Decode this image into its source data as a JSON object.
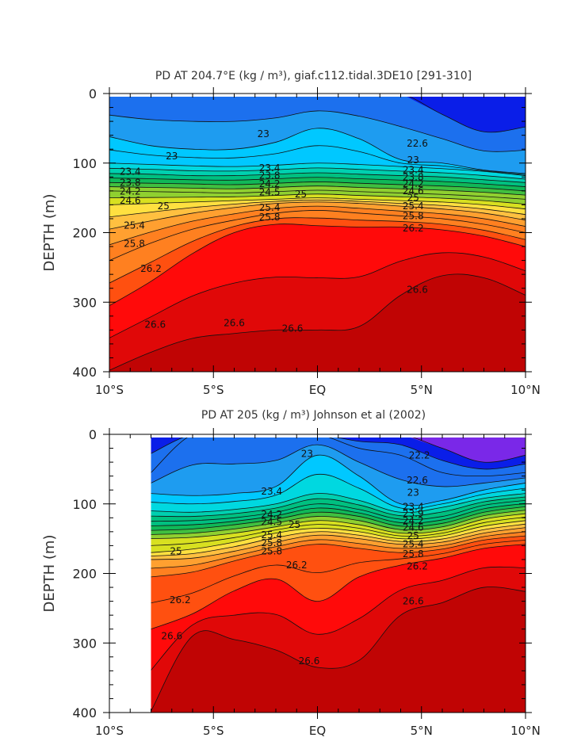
{
  "chart_data": [
    {
      "type": "contour",
      "title": "PD AT 204.7°E (kg / m³), giaf.c112.tidal.3DE10 [291-310]",
      "ylabel": "DEPTH (m)",
      "xlabel": "",
      "x_tick_labels": [
        "10°S",
        "5°S",
        "EQ",
        "5°N",
        "10°N"
      ],
      "x_ticks": [
        -10,
        -5,
        0,
        5,
        10
      ],
      "y_ticks": [
        0,
        100,
        200,
        300,
        400
      ],
      "xlim": [
        -10,
        10
      ],
      "ylim": [
        400,
        0
      ],
      "data_xlim": [
        -10,
        10
      ],
      "units": "kg / m³",
      "fill_colors": [
        "#0a1ee8",
        "#1c70ee",
        "#1e9cf0",
        "#00c8ff",
        "#00d8e0",
        "#00d0b0",
        "#00c080",
        "#10b858",
        "#40c040",
        "#90d030",
        "#d8e020",
        "#ffe040",
        "#ffc040",
        "#ffa030",
        "#ff8020",
        "#ff5010",
        "#ff0a0a",
        "#e00808",
        "#c00404"
      ],
      "contour_levels": [
        22.6,
        22.8,
        23.0,
        23.2,
        23.4,
        23.6,
        23.8,
        24.0,
        24.2,
        24.4,
        24.6,
        24.8,
        25.0,
        25.2,
        25.4,
        25.6,
        25.8,
        26.0,
        26.2,
        26.4,
        26.6,
        26.8
      ],
      "isopycnal_depths": {
        "lat": [
          -10,
          -8,
          -6,
          -4,
          -2,
          0,
          2,
          4,
          6,
          8,
          10
        ],
        "series": [
          {
            "name": "22.6",
            "depth": [
              null,
              null,
              null,
              null,
              null,
              null,
              null,
              0,
              30,
              55,
              48
            ]
          },
          {
            "name": "23",
            "depth": [
              62,
              75,
              80,
              80,
              70,
              50,
              65,
              95,
              100,
              110,
              115
            ]
          },
          {
            "name": "23.4",
            "depth": [
              100,
              102,
              104,
              105,
              103,
              100,
              102,
              105,
              108,
              112,
              118
            ]
          },
          {
            "name": "23.8",
            "depth": [
              115,
              116,
              118,
              118,
              116,
              114,
              116,
              118,
              120,
              124,
              128
            ]
          },
          {
            "name": "24.2",
            "depth": [
              128,
              129,
              130,
              131,
              129,
              127,
              129,
              131,
              133,
              136,
              140
            ]
          },
          {
            "name": "24.6",
            "depth": [
              140,
              141,
              142,
              143,
              141,
              139,
              141,
              143,
              145,
              148,
              152
            ]
          },
          {
            "name": "25",
            "depth": [
              160,
              158,
              156,
              154,
              152,
              150,
              152,
              154,
              156,
              160,
              166
            ]
          },
          {
            "name": "25.4",
            "depth": [
              195,
              183,
              172,
              164,
              158,
              156,
              158,
              162,
              166,
              172,
              182
            ]
          },
          {
            "name": "25.8",
            "depth": [
              240,
              215,
              195,
              182,
              172,
              168,
              172,
              176,
              180,
              188,
              200
            ]
          },
          {
            "name": "26.2",
            "depth": [
              305,
              270,
              230,
              200,
              188,
              190,
              192,
              192,
              196,
              205,
              220
            ]
          },
          {
            "name": "26.6",
            "depth": [
              398,
              372,
              352,
              345,
              340,
              340,
              335,
              290,
              262,
              265,
              290
            ]
          }
        ]
      },
      "labels": [
        "23",
        "23",
        "22.6",
        "23.4",
        "23.8",
        "24.2",
        "24.6",
        "25",
        "25.4",
        "25.8",
        "26.2",
        "26.6",
        "23.4",
        "23.8",
        "24.2",
        "24.5",
        "25",
        "25.4",
        "25.8",
        "23",
        "23.4",
        "23.8",
        "24.2",
        "24.6",
        "25",
        "25.4",
        "25.8",
        "26.2",
        "26.6",
        "26.6",
        "26.6"
      ]
    },
    {
      "type": "contour",
      "title": "PD AT 205 (kg / m³) Johnson et al (2002)",
      "ylabel": "DEPTH (m)",
      "xlabel": "",
      "x_tick_labels": [
        "10°S",
        "5°S",
        "EQ",
        "5°N",
        "10°N"
      ],
      "x_ticks": [
        -10,
        -5,
        0,
        5,
        10
      ],
      "y_ticks": [
        0,
        100,
        200,
        300,
        400
      ],
      "xlim": [
        -10,
        10
      ],
      "ylim": [
        400,
        0
      ],
      "data_xlim": [
        -8,
        10
      ],
      "units": "kg / m³",
      "fill_colors": [
        "#7a28e8",
        "#0a1ee8",
        "#1c70ee",
        "#1e9cf0",
        "#00c8ff",
        "#00d8e0",
        "#00d0b0",
        "#00c080",
        "#10b858",
        "#40c040",
        "#90d030",
        "#d8e020",
        "#ffe040",
        "#ffc040",
        "#ffa030",
        "#ff8020",
        "#ff5010",
        "#ff0a0a",
        "#e00808",
        "#c00404"
      ],
      "contour_levels": [
        22.2,
        22.6,
        22.8,
        23.0,
        23.2,
        23.4,
        23.6,
        23.8,
        24.0,
        24.2,
        24.4,
        24.6,
        24.8,
        25.0,
        25.2,
        25.4,
        25.6,
        25.8,
        26.0,
        26.2,
        26.4,
        26.6,
        26.8
      ],
      "isopycnal_depths": {
        "lat": [
          -8,
          -6,
          -4,
          -2,
          0,
          2,
          4,
          6,
          8,
          10
        ],
        "series": [
          {
            "name": "22.2",
            "depth": [
              null,
              null,
              null,
              null,
              null,
              null,
              0,
              20,
              40,
              30
            ]
          },
          {
            "name": "22.6",
            "depth": [
              55,
              0,
              0,
              0,
              0,
              20,
              30,
              55,
              60,
              55
            ]
          },
          {
            "name": "23",
            "depth": [
              85,
              88,
              85,
              75,
              30,
              60,
              100,
              95,
              80,
              70
            ]
          },
          {
            "name": "23.4",
            "depth": [
              110,
              112,
              108,
              100,
              85,
              95,
              112,
              105,
              92,
              85
            ]
          },
          {
            "name": "23.8",
            "depth": [
              125,
              124,
              120,
              112,
              100,
              108,
              122,
              118,
              102,
              95
            ]
          },
          {
            "name": "24.2",
            "depth": [
              138,
              136,
              130,
              122,
              112,
              118,
              132,
              128,
              112,
              104
            ]
          },
          {
            "name": "24.6",
            "depth": [
              150,
              148,
              142,
              133,
              124,
              130,
              142,
              138,
              122,
              114
            ]
          },
          {
            "name": "25",
            "depth": [
              170,
              165,
              155,
              142,
              135,
              140,
              150,
              146,
              132,
              124
            ]
          },
          {
            "name": "25.4",
            "depth": [
              180,
              178,
              168,
              155,
              145,
              150,
              158,
              155,
              142,
              134
            ]
          },
          {
            "name": "25.8",
            "depth": [
              205,
              198,
              182,
              168,
              158,
              164,
              170,
              165,
              152,
              146
            ]
          },
          {
            "name": "26.2",
            "depth": [
              280,
              258,
              225,
              208,
              240,
              205,
              188,
              178,
              164,
              158
            ]
          },
          {
            "name": "26.6",
            "depth": [
              398,
              290,
              295,
              310,
              335,
              325,
              260,
              242,
              220,
              226
            ]
          }
        ]
      },
      "labels": [
        "22.2",
        "23",
        "23.4",
        "22.6",
        "23",
        "25",
        "25.8",
        "24.2",
        "24.5",
        "25",
        "25.4",
        "25.8",
        "26.2",
        "23.4",
        "23.9",
        "24.2",
        "24.6",
        "25",
        "25.4",
        "25.8",
        "26.2",
        "26.2",
        "26.6",
        "26.6",
        "26.6"
      ]
    }
  ]
}
